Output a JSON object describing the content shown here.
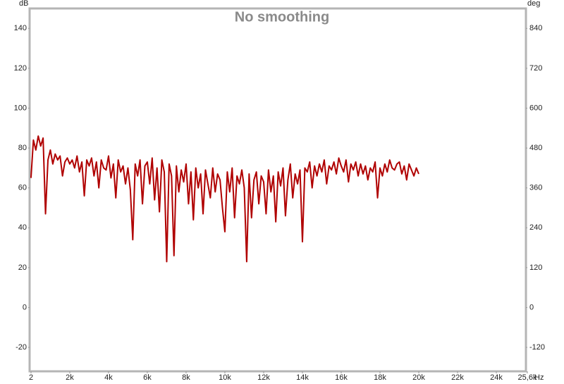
{
  "chart_data": {
    "type": "line",
    "title": "No smoothing",
    "y_label": "dB",
    "y2_label": "deg",
    "x_unit": "Hz",
    "xlim": [
      2,
      25600
    ],
    "ylim": [
      -32,
      150
    ],
    "y2lim": [
      -192,
      900
    ],
    "xticks": [
      2,
      {
        "value": 2000,
        "label": "2k"
      },
      {
        "value": 4000,
        "label": "4k"
      },
      {
        "value": 6000,
        "label": "6k"
      },
      {
        "value": 8000,
        "label": "8k"
      },
      {
        "value": 10000,
        "label": "10k"
      },
      {
        "value": 12000,
        "label": "12k"
      },
      {
        "value": 14000,
        "label": "14k"
      },
      {
        "value": 16000,
        "label": "16k"
      },
      {
        "value": 18000,
        "label": "18k"
      },
      {
        "value": 20000,
        "label": "20k"
      },
      {
        "value": 22000,
        "label": "22k"
      },
      {
        "value": 24000,
        "label": "24k"
      },
      {
        "value": 25600,
        "label": "25,6k"
      }
    ],
    "yticks": [
      -20,
      0,
      20,
      40,
      60,
      80,
      100,
      120,
      140
    ],
    "y2ticks": [
      -120,
      0,
      120,
      240,
      360,
      480,
      600,
      720,
      840
    ],
    "x": [
      0,
      125,
      250,
      375,
      500,
      625,
      750,
      875,
      1000,
      1125,
      1250,
      1375,
      1500,
      1625,
      1750,
      1875,
      2000,
      2125,
      2250,
      2375,
      2500,
      2625,
      2750,
      2875,
      3000,
      3125,
      3250,
      3375,
      3500,
      3625,
      3750,
      3875,
      4000,
      4125,
      4250,
      4375,
      4500,
      4625,
      4750,
      4875,
      5000,
      5125,
      5250,
      5375,
      5500,
      5625,
      5750,
      5875,
      6000,
      6125,
      6250,
      6375,
      6500,
      6625,
      6750,
      6875,
      7000,
      7125,
      7250,
      7375,
      7500,
      7625,
      7750,
      7875,
      8000,
      8125,
      8250,
      8375,
      8500,
      8625,
      8750,
      8875,
      9000,
      9125,
      9250,
      9375,
      9500,
      9625,
      9750,
      9875,
      10000,
      10125,
      10250,
      10375,
      10500,
      10625,
      10750,
      10875,
      11000,
      11125,
      11250,
      11375,
      11500,
      11625,
      11750,
      11875,
      12000,
      12125,
      12250,
      12375,
      12500,
      12625,
      12750,
      12875,
      13000,
      13125,
      13250,
      13375,
      13500,
      13625,
      13750,
      13875,
      14000,
      14125,
      14250,
      14375,
      14500,
      14625,
      14750,
      14875,
      15000,
      15125,
      15250,
      15375,
      15500,
      15625,
      15750,
      15875,
      16000,
      16125,
      16250,
      16375,
      16500,
      16625,
      16750,
      16875,
      17000,
      17125,
      17250,
      17375,
      17500,
      17625,
      17750,
      17875,
      18000,
      18125,
      18250,
      18375,
      18500,
      18625,
      18750,
      18875,
      19000,
      19125,
      19250,
      19375,
      19500,
      19625,
      19750,
      19875,
      20000
    ],
    "series": [
      {
        "color": "#b00000",
        "values": [
          65,
          84,
          79,
          86,
          81,
          85,
          47,
          74,
          79,
          72,
          77,
          74,
          76,
          66,
          73,
          75,
          72,
          74,
          70,
          76,
          68,
          73,
          56,
          74,
          71,
          75,
          66,
          73,
          60,
          74,
          70,
          69,
          76,
          65,
          72,
          55,
          74,
          68,
          71,
          62,
          70,
          59,
          34,
          72,
          66,
          74,
          52,
          71,
          73,
          62,
          75,
          54,
          70,
          48,
          74,
          68,
          23,
          72,
          66,
          26,
          71,
          58,
          69,
          63,
          72,
          52,
          68,
          44,
          70,
          60,
          67,
          47,
          69,
          62,
          55,
          70,
          58,
          67,
          64,
          50,
          38,
          68,
          58,
          70,
          45,
          66,
          62,
          69,
          60,
          23,
          67,
          45,
          64,
          68,
          52,
          66,
          63,
          47,
          69,
          58,
          66,
          43,
          68,
          61,
          70,
          46,
          64,
          72,
          55,
          67,
          62,
          69,
          33,
          70,
          68,
          73,
          60,
          71,
          66,
          72,
          68,
          74,
          62,
          71,
          69,
          73,
          67,
          75,
          71,
          68,
          74,
          63,
          72,
          69,
          73,
          66,
          72,
          67,
          71,
          64,
          70,
          68,
          73,
          55,
          70,
          66,
          72,
          68,
          74,
          70,
          69,
          72,
          73,
          67,
          71,
          64,
          72,
          69,
          66,
          70,
          67
        ]
      }
    ]
  }
}
